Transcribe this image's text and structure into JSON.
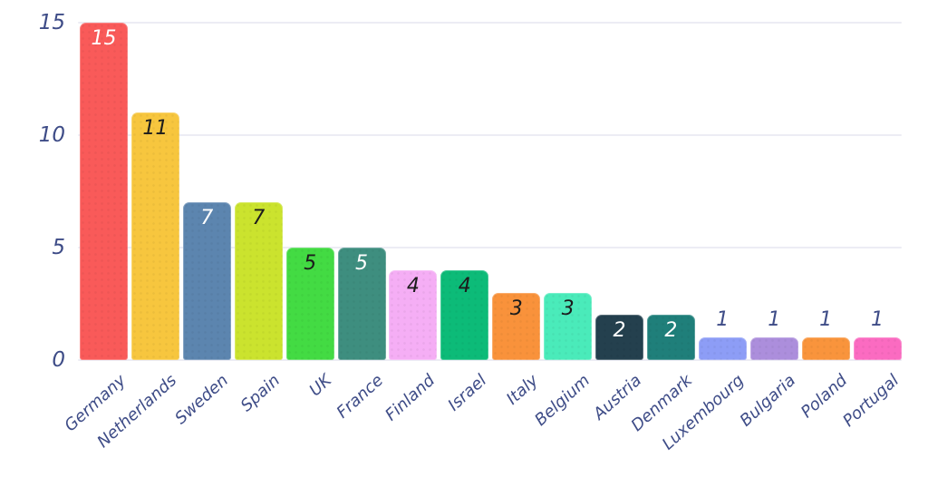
{
  "chart_data": {
    "type": "bar",
    "title": "",
    "xlabel": "",
    "ylabel": "",
    "categories": [
      "Germany",
      "Netherlands",
      "Sweden",
      "Spain",
      "UK",
      "France",
      "Finland",
      "Israel",
      "Italy",
      "Belgium",
      "Austria",
      "Denmark",
      "Luxembourg",
      "Bulgaria",
      "Poland",
      "Portugal"
    ],
    "values": [
      15,
      11,
      7,
      7,
      5,
      5,
      4,
      4,
      3,
      3,
      2,
      2,
      1,
      1,
      1,
      1
    ],
    "value_labels": [
      "15",
      "11",
      "7",
      "7",
      "5",
      "5",
      "4",
      "4",
      "3",
      "3",
      "2",
      "2",
      "1",
      "1",
      "1",
      "1"
    ],
    "bar_colors": [
      "#F95A59",
      "#F7C63E",
      "#5C85AF",
      "#CBE32E",
      "#43DB43",
      "#3E8E7F",
      "#F5AEF5",
      "#0CBB78",
      "#F9923B",
      "#4AEBBA",
      "#24404E",
      "#1F7F7A",
      "#8D9DF6",
      "#AC8EDC",
      "#F9943C",
      "#FB6BC1"
    ],
    "value_label_positions": [
      "inside",
      "inside",
      "inside",
      "inside",
      "inside",
      "inside",
      "inside",
      "inside",
      "inside",
      "inside",
      "inside",
      "inside",
      "above",
      "above",
      "above",
      "above"
    ],
    "value_label_colors": [
      "#FFFFFF",
      "#1C1C1C",
      "#FFFFFF",
      "#1C1C1C",
      "#1C1C1C",
      "#FFFFFF",
      "#1C1C1C",
      "#1C1C1C",
      "#1C1C1C",
      "#1C1C1C",
      "#FFFFFF",
      "#FFFFFF",
      "#3E4C87",
      "#3E4C87",
      "#3E4C87",
      "#3E4C87"
    ],
    "y_ticks": [
      15,
      10,
      5,
      0
    ],
    "ylim": [
      0,
      15
    ],
    "grid": true,
    "legend_position": "none",
    "axis_text_color": "#3E4C87",
    "gridline_color": "#ECECF4",
    "background_color": "#FFFFFF"
  }
}
